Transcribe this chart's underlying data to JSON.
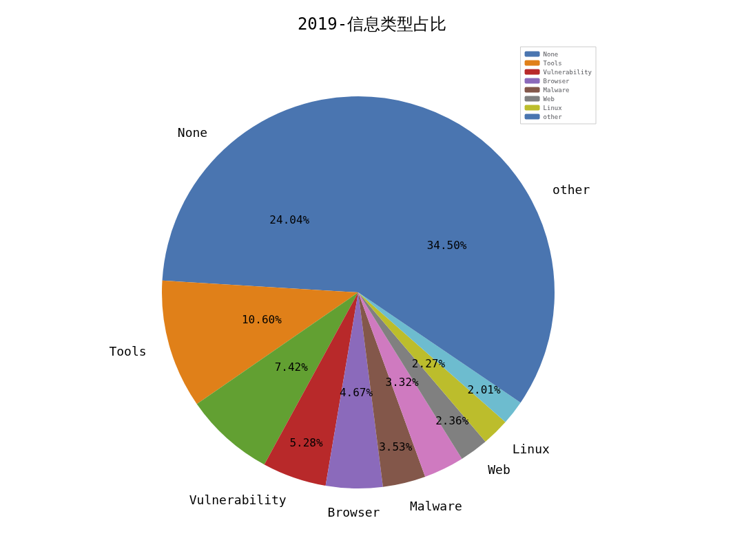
{
  "chart_data": {
    "type": "pie",
    "title": "2019-信息类型占比",
    "categories": [
      "None",
      "Tools",
      null,
      "Vulnerability",
      "Browser",
      "Malware",
      null,
      "Web",
      "Linux",
      null,
      "other"
    ],
    "values": [
      24.04,
      10.6,
      7.42,
      5.28,
      4.67,
      3.53,
      3.32,
      2.36,
      2.27,
      2.01,
      34.5
    ],
    "value_labels": [
      "24.04%",
      "10.60%",
      "7.42%",
      "5.28%",
      "4.67%",
      "3.53%",
      "3.32%",
      "2.36%",
      "2.27%",
      "2.01%",
      "34.50%"
    ],
    "colors": [
      "#4a75b0",
      "#e08019",
      "#62a032",
      "#b8292a",
      "#8b6abb",
      "#83574a",
      "#cf7ac0",
      "#808080",
      "#bcbd2c",
      "#6dbccf",
      "#4a75b0"
    ],
    "legend": "top right"
  }
}
